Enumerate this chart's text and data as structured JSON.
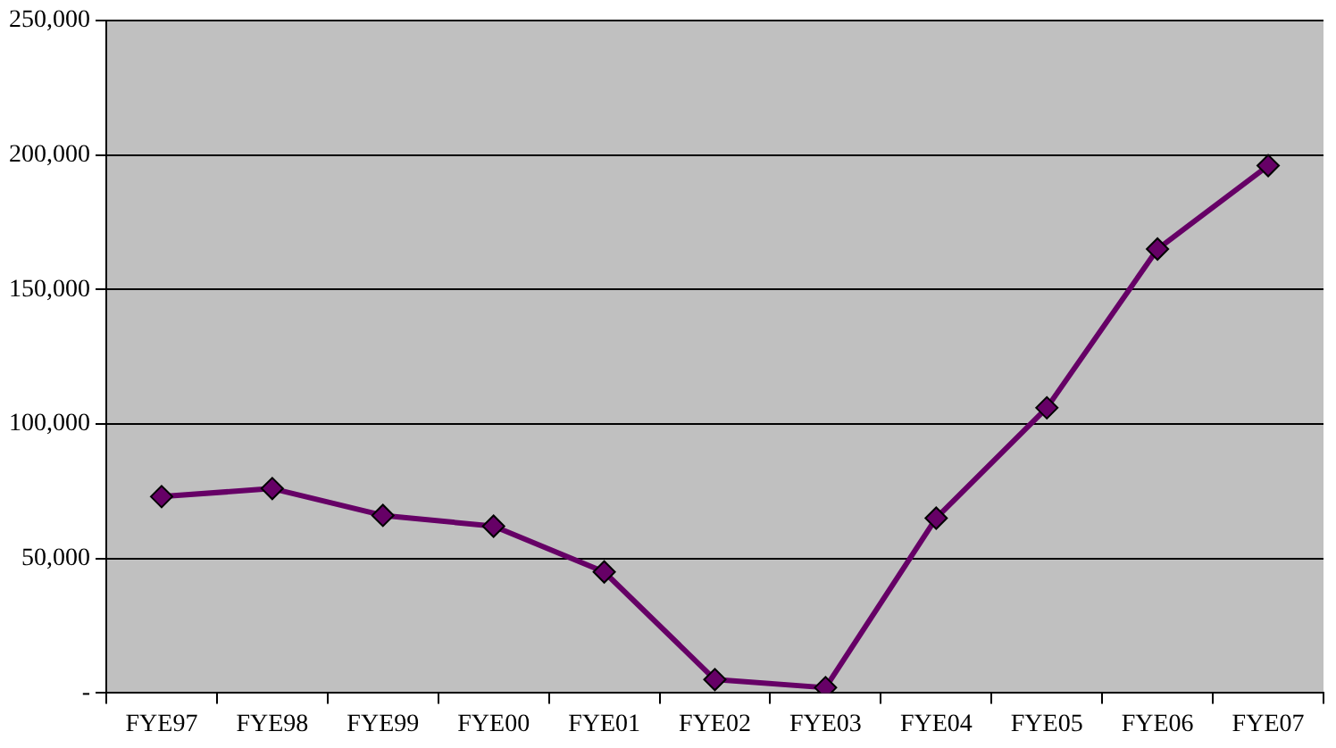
{
  "chart_data": {
    "type": "line",
    "categories": [
      "FYE97",
      "FYE98",
      "FYE99",
      "FYE00",
      "FYE01",
      "FYE02",
      "FYE03",
      "FYE04",
      "FYE05",
      "FYE06",
      "FYE07"
    ],
    "series": [
      {
        "color": "#660066",
        "values": [
          73000,
          76000,
          66000,
          62000,
          45000,
          5000,
          2000,
          65000,
          106000,
          165000,
          196000
        ]
      }
    ],
    "ylim": [
      0,
      250000
    ],
    "yticks": [
      {
        "value": 0,
        "label": "-"
      },
      {
        "value": 50000,
        "label": "50,000"
      },
      {
        "value": 100000,
        "label": "100,000"
      },
      {
        "value": 150000,
        "label": "150,000"
      },
      {
        "value": 200000,
        "label": "200,000"
      },
      {
        "value": 250000,
        "label": "250,000"
      }
    ],
    "grid": "y",
    "legend": false,
    "marker": "diamond",
    "line_style": "solid"
  }
}
